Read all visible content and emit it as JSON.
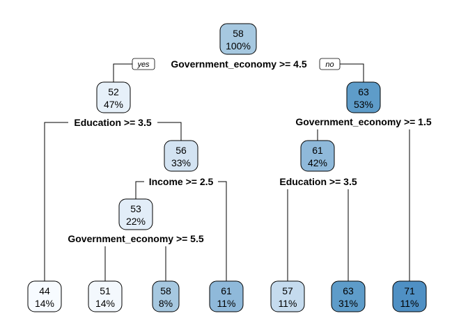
{
  "tree": {
    "branch_tags": {
      "left": "yes",
      "right": "no"
    },
    "nodes": {
      "root": {
        "value": "58",
        "pct": "100%",
        "fill": "#a6c8e0"
      },
      "n52": {
        "value": "52",
        "pct": "47%",
        "fill": "#e6f0f9"
      },
      "n63a": {
        "value": "63",
        "pct": "53%",
        "fill": "#5e9cc9"
      },
      "n56": {
        "value": "56",
        "pct": "33%",
        "fill": "#d3e3f2"
      },
      "n61a": {
        "value": "61",
        "pct": "42%",
        "fill": "#8fb9da"
      },
      "n53": {
        "value": "53",
        "pct": "22%",
        "fill": "#e2edf8"
      },
      "l44": {
        "value": "44",
        "pct": "14%",
        "fill": "#f7fbff"
      },
      "l51": {
        "value": "51",
        "pct": "14%",
        "fill": "#f3f8fd"
      },
      "l58": {
        "value": "58",
        "pct": "8%",
        "fill": "#a6c8e0"
      },
      "l61": {
        "value": "61",
        "pct": "11%",
        "fill": "#8fb9da"
      },
      "l57": {
        "value": "57",
        "pct": "11%",
        "fill": "#c5dbee"
      },
      "l63": {
        "value": "63",
        "pct": "31%",
        "fill": "#5e9cc9"
      },
      "l71": {
        "value": "71",
        "pct": "11%",
        "fill": "#4f90c4"
      }
    },
    "splits": {
      "root": "Government_economy >= 4.5",
      "n52": "Education >= 3.5",
      "n63a": "Government_economy >= 1.5",
      "n56": "Income >= 2.5",
      "n61a": "Education >= 3.5",
      "n53": "Government_economy >= 5.5"
    }
  }
}
